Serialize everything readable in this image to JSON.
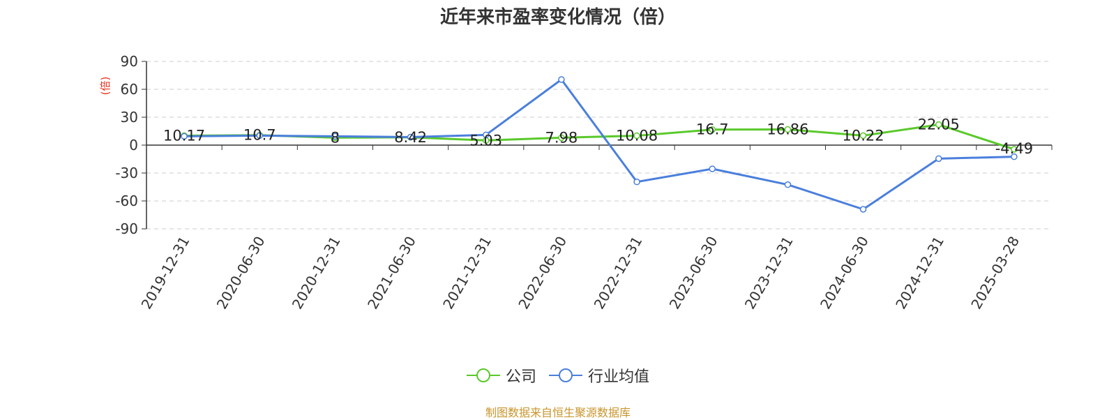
{
  "chart_data": {
    "type": "line",
    "title": "近年来市盈率变化情况（倍）",
    "ylabel": "(倍)",
    "ylim": [
      -90,
      90
    ],
    "yticks": [
      90,
      60,
      30,
      0,
      -30,
      -60,
      -90
    ],
    "grid": true,
    "legend_position": "bottom-center",
    "categories": [
      "2019-12-31",
      "2020-06-30",
      "2020-12-31",
      "2021-06-30",
      "2021-12-31",
      "2022-06-30",
      "2022-12-31",
      "2023-06-30",
      "2023-12-31",
      "2024-06-30",
      "2024-12-31",
      "2025-03-28"
    ],
    "series": [
      {
        "name": "公司",
        "color": "#5ac92b",
        "values": [
          10.17,
          10.7,
          8,
          8.42,
          5.03,
          7.98,
          10.08,
          16.7,
          16.86,
          10.22,
          22.05,
          -4.49
        ],
        "labels": [
          "10.17",
          "10.7",
          "8",
          "8.42",
          "5.03",
          "7.98",
          "10.08",
          "16.7",
          "16.86",
          "10.22",
          "22.05",
          "-4.49"
        ]
      },
      {
        "name": "行业均值",
        "color": "#4a7fdc",
        "values": [
          9.5,
          10.2,
          9.5,
          8.6,
          11.0,
          70.5,
          -39.5,
          -25.5,
          -42.5,
          -69.0,
          -14.5,
          -12.5
        ]
      }
    ]
  },
  "source_note": "制图数据来自恒生聚源数据库"
}
